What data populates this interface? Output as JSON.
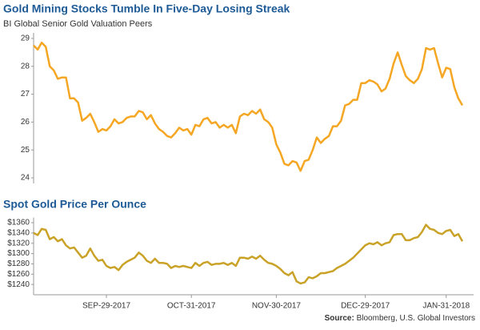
{
  "chart_data": [
    {
      "type": "line",
      "title": "Gold Mining Stocks Tumble In Five-Day Losing Streak",
      "subtitle": "BI Global Senior Gold Valuation Peers",
      "color": "#f5a623",
      "ylim": [
        23.8,
        29.2
      ],
      "yticks": [
        24,
        25,
        26,
        27,
        28,
        29
      ],
      "values": [
        28.75,
        28.6,
        28.85,
        28.7,
        28.0,
        27.85,
        27.55,
        27.6,
        27.6,
        26.85,
        26.85,
        26.7,
        26.05,
        26.15,
        26.3,
        26.0,
        25.65,
        25.75,
        25.7,
        25.85,
        26.1,
        25.95,
        26.0,
        26.15,
        26.2,
        26.2,
        26.4,
        26.35,
        26.1,
        26.25,
        25.95,
        25.75,
        25.65,
        25.5,
        25.45,
        25.6,
        25.8,
        25.7,
        25.75,
        25.55,
        25.9,
        25.85,
        26.1,
        26.15,
        25.95,
        26.0,
        25.8,
        25.9,
        25.8,
        25.9,
        25.6,
        26.2,
        26.3,
        26.25,
        26.4,
        26.3,
        26.45,
        26.1,
        26.0,
        25.8,
        25.2,
        24.9,
        24.5,
        24.45,
        24.6,
        24.55,
        24.25,
        24.6,
        24.65,
        25.0,
        25.45,
        25.25,
        25.4,
        25.5,
        25.85,
        25.85,
        26.05,
        26.6,
        26.65,
        26.8,
        26.8,
        27.4,
        27.4,
        27.5,
        27.45,
        27.35,
        27.1,
        27.2,
        27.55,
        28.1,
        28.5,
        28.05,
        27.65,
        27.5,
        27.4,
        27.55,
        27.9,
        28.65,
        28.6,
        28.65,
        28.1,
        27.6,
        27.95,
        27.9,
        27.25,
        26.85,
        26.6
      ]
    },
    {
      "type": "line",
      "title": "Spot Gold Price Per Ounce",
      "color": "#c9a227",
      "ylim": [
        1220,
        1370
      ],
      "yticks": [
        {
          "value": 1240,
          "label": "$1240"
        },
        {
          "value": 1260,
          "label": "$1260"
        },
        {
          "value": 1280,
          "label": "$1280"
        },
        {
          "value": 1300,
          "label": "$1300"
        },
        {
          "value": 1320,
          "label": "$1320"
        },
        {
          "value": 1340,
          "label": "$1340"
        },
        {
          "value": 1360,
          "label": "$1360"
        }
      ],
      "categories": [
        null,
        null,
        null,
        null,
        null,
        null,
        null,
        null,
        null,
        null,
        null,
        null,
        null,
        null,
        null,
        null,
        null,
        null,
        "SEP-29-2017",
        null,
        null,
        null,
        null,
        null,
        null,
        null,
        null,
        null,
        null,
        null,
        null,
        null,
        null,
        null,
        null,
        null,
        null,
        null,
        null,
        "OCT-31-2017",
        null,
        null,
        null,
        null,
        null,
        null,
        null,
        null,
        null,
        null,
        null,
        null,
        null,
        null,
        null,
        null,
        null,
        null,
        null,
        null,
        "NOV-30-2017",
        null,
        null,
        null,
        null,
        null,
        null,
        null,
        null,
        null,
        null,
        null,
        null,
        null,
        null,
        null,
        null,
        null,
        null,
        null,
        null,
        null,
        "DEC-29-2017",
        null,
        null,
        null,
        null,
        null,
        null,
        null,
        null,
        null,
        null,
        null,
        null,
        null,
        null,
        null,
        null,
        null,
        null,
        null,
        "JAN-31-2018",
        null,
        null,
        null,
        null
      ],
      "values": [
        1340,
        1336,
        1348,
        1346,
        1328,
        1332,
        1324,
        1328,
        1316,
        1310,
        1312,
        1302,
        1292,
        1296,
        1310,
        1296,
        1286,
        1288,
        1276,
        1272,
        1274,
        1268,
        1278,
        1284,
        1288,
        1292,
        1302,
        1296,
        1286,
        1282,
        1290,
        1282,
        1282,
        1280,
        1272,
        1276,
        1274,
        1276,
        1274,
        1272,
        1282,
        1276,
        1282,
        1284,
        1278,
        1280,
        1280,
        1282,
        1278,
        1282,
        1276,
        1292,
        1292,
        1290,
        1294,
        1290,
        1296,
        1288,
        1282,
        1280,
        1276,
        1270,
        1262,
        1258,
        1264,
        1246,
        1242,
        1244,
        1254,
        1252,
        1256,
        1262,
        1262,
        1264,
        1266,
        1272,
        1276,
        1280,
        1286,
        1292,
        1300,
        1308,
        1316,
        1320,
        1318,
        1322,
        1316,
        1320,
        1322,
        1336,
        1338,
        1338,
        1326,
        1326,
        1330,
        1332,
        1342,
        1356,
        1348,
        1346,
        1340,
        1338,
        1344,
        1346,
        1334,
        1338,
        1324
      ],
      "source_label": "Source:",
      "source": "Bloomberg, U.S. Global Investors"
    }
  ]
}
